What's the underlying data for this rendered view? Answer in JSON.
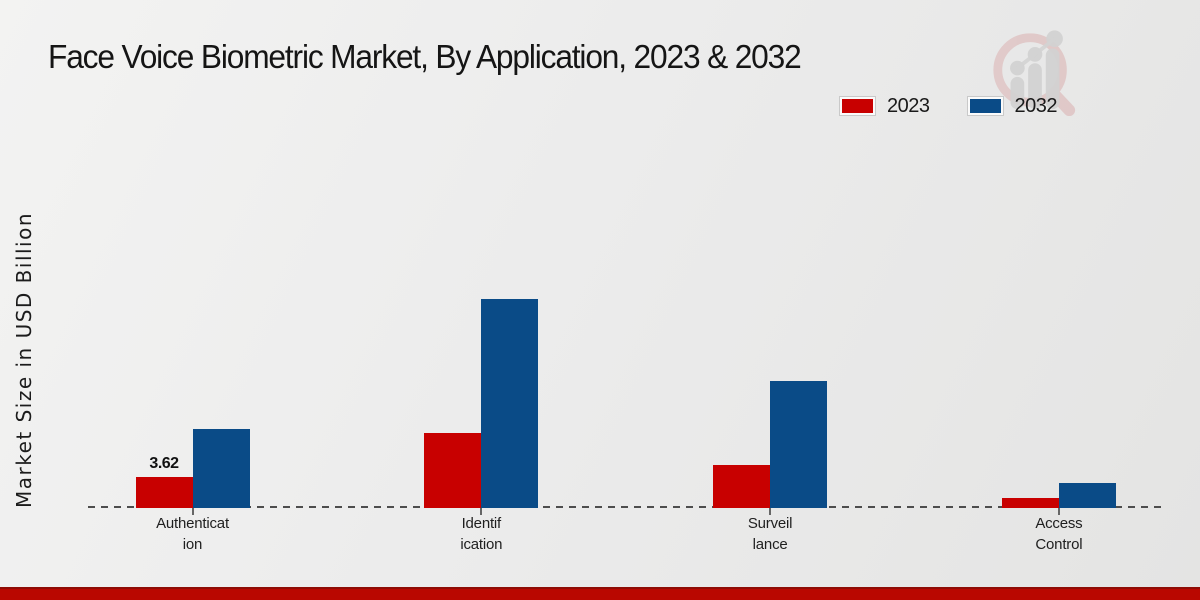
{
  "header": {
    "title": "Face Voice Biometric Market, By Application, 2023 & 2032"
  },
  "chart_data": {
    "type": "bar",
    "title": "Face Voice Biometric Market, By Application, 2023 & 2032",
    "xlabel": "",
    "ylabel": "Market Size in USD Billion",
    "categories": [
      "Authentication",
      "Identification",
      "Surveillance",
      "Access Control"
    ],
    "category_label_lines": [
      [
        "Authenticat",
        "ion"
      ],
      [
        "Identif",
        "ication"
      ],
      [
        "Surveil",
        "lance"
      ],
      [
        "Access",
        "Control"
      ]
    ],
    "series": [
      {
        "name": "2023",
        "color": "#c80000",
        "values": [
          3.62,
          8.8,
          5.0,
          1.2
        ]
      },
      {
        "name": "2032",
        "color": "#0a4b87",
        "values": [
          9.2,
          24.4,
          14.8,
          2.9
        ]
      }
    ],
    "data_labels": [
      {
        "series_index": 0,
        "category_index": 0,
        "text": "3.62"
      }
    ],
    "ylim": [
      0,
      26
    ],
    "grid": false,
    "legend_position": "top-right",
    "baseline_style": "dashed",
    "baseline_color": "#4d4d4d"
  },
  "footer": {
    "bar_color": "#b90700"
  },
  "logo": {
    "name": "magnifier-chart-logo",
    "ring_color": "#d9abab",
    "glyph_color": "#d2d2d2"
  }
}
